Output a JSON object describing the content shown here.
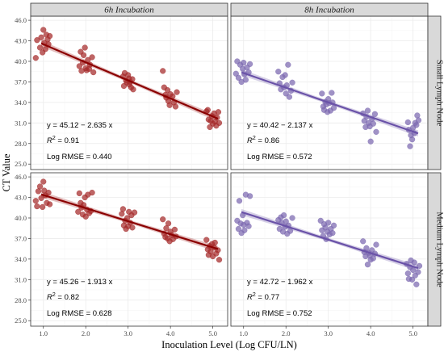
{
  "chart_data": {
    "type": "scatter",
    "xlabel": "Inoculation Level (Log CFU/LN)",
    "ylabel": "CT Value",
    "xlim": [
      0.7,
      5.35
    ],
    "ylim": [
      24.2,
      46.6
    ],
    "x_ticks": [
      1.0,
      2.0,
      3.0,
      4.0,
      5.0
    ],
    "x_tick_labels": [
      "1.0",
      "2.0",
      "3.0",
      "4.0",
      "5.0"
    ],
    "y_ticks": [
      25.0,
      28.0,
      31.0,
      34.0,
      37.0,
      40.0,
      43.0,
      46.0
    ],
    "y_tick_labels": [
      "25.0",
      "28.0",
      "31.0",
      "34.0",
      "37.0",
      "40.0",
      "43.0",
      "46.0"
    ],
    "grid": true,
    "columns": [
      "6h Incubation",
      "8h Incubation"
    ],
    "rows": [
      "Small Lymph Node",
      "Medium Lymph Node"
    ],
    "colors": {
      "6h Incubation": "#a52a2a",
      "8h Incubation": "#7b68b0",
      "line_6h": "#8b0000",
      "line_8h": "#6a52a8",
      "strip_bg": "#d9d9d9",
      "grid": "#ebebeb"
    },
    "panels": [
      {
        "column": "6h Incubation",
        "row": "Small Lymph Node",
        "fit": {
          "intercept": 45.12,
          "slope": -2.635
        },
        "equation": "y = 45.12 − 2.635 x",
        "r2_label": "R",
        "r2_value": "= 0.91",
        "rmse_label": "Log RMSE = 0.440",
        "points": [
          [
            0.82,
            40.5
          ],
          [
            0.85,
            43.1
          ],
          [
            0.92,
            42.0
          ],
          [
            0.95,
            43.5
          ],
          [
            0.98,
            41.3
          ],
          [
            1.0,
            44.6
          ],
          [
            1.02,
            42.7
          ],
          [
            1.05,
            41.8
          ],
          [
            1.07,
            43.9
          ],
          [
            1.1,
            43.2
          ],
          [
            1.12,
            42.5
          ],
          [
            1.15,
            43.7
          ],
          [
            1.85,
            39.3
          ],
          [
            1.88,
            41.4
          ],
          [
            1.9,
            38.6
          ],
          [
            1.93,
            39.8
          ],
          [
            1.95,
            40.9
          ],
          [
            1.98,
            42.0
          ],
          [
            2.0,
            39.0
          ],
          [
            2.02,
            38.7
          ],
          [
            2.05,
            40.2
          ],
          [
            2.08,
            38.9
          ],
          [
            2.1,
            39.5
          ],
          [
            2.15,
            40.6
          ],
          [
            2.18,
            38.4
          ],
          [
            2.88,
            37.8
          ],
          [
            2.9,
            36.4
          ],
          [
            2.92,
            38.3
          ],
          [
            2.95,
            37.2
          ],
          [
            2.97,
            36.9
          ],
          [
            3.0,
            38.0
          ],
          [
            3.02,
            37.5
          ],
          [
            3.03,
            36.6
          ],
          [
            3.05,
            37.0
          ],
          [
            3.07,
            36.2
          ],
          [
            3.1,
            37.4
          ],
          [
            3.12,
            35.9
          ],
          [
            3.82,
            38.6
          ],
          [
            3.85,
            36.2
          ],
          [
            3.88,
            35.1
          ],
          [
            3.9,
            34.7
          ],
          [
            3.93,
            35.8
          ],
          [
            3.95,
            34.2
          ],
          [
            3.98,
            33.6
          ],
          [
            4.0,
            35.2
          ],
          [
            4.05,
            34.9
          ],
          [
            4.08,
            34.0
          ],
          [
            4.12,
            33.4
          ],
          [
            4.15,
            35.5
          ],
          [
            4.85,
            32.7
          ],
          [
            4.88,
            32.9
          ],
          [
            4.9,
            31.5
          ],
          [
            4.93,
            30.4
          ],
          [
            4.95,
            31.3
          ],
          [
            4.98,
            32.0
          ],
          [
            5.0,
            30.9
          ],
          [
            5.03,
            32.4
          ],
          [
            5.05,
            31.2
          ],
          [
            5.08,
            30.6
          ],
          [
            5.1,
            31.8
          ],
          [
            5.13,
            32.6
          ],
          [
            5.15,
            31.0
          ]
        ]
      },
      {
        "column": "8h Incubation",
        "row": "Small Lymph Node",
        "fit": {
          "intercept": 40.42,
          "slope": -2.137
        },
        "equation": "y = 40.42 − 2.137 x",
        "r2_label": "R",
        "r2_value": "= 0.86",
        "rmse_label": "Log RMSE = 0.572",
        "points": [
          [
            0.82,
            38.2
          ],
          [
            0.85,
            40.0
          ],
          [
            0.88,
            37.6
          ],
          [
            0.92,
            39.5
          ],
          [
            0.95,
            37.0
          ],
          [
            0.98,
            38.9
          ],
          [
            1.0,
            39.8
          ],
          [
            1.02,
            38.1
          ],
          [
            1.05,
            37.3
          ],
          [
            1.08,
            39.1
          ],
          [
            1.12,
            38.4
          ],
          [
            1.15,
            39.6
          ],
          [
            1.82,
            38.5
          ],
          [
            1.85,
            36.8
          ],
          [
            1.88,
            35.9
          ],
          [
            1.92,
            37.7
          ],
          [
            1.95,
            36.2
          ],
          [
            1.98,
            38.0
          ],
          [
            2.0,
            35.3
          ],
          [
            2.02,
            36.5
          ],
          [
            2.05,
            39.5
          ],
          [
            2.08,
            34.8
          ],
          [
            2.12,
            35.7
          ],
          [
            2.15,
            36.9
          ],
          [
            2.85,
            35.3
          ],
          [
            2.88,
            33.4
          ],
          [
            2.9,
            32.9
          ],
          [
            2.93,
            34.1
          ],
          [
            2.95,
            33.7
          ],
          [
            2.98,
            32.6
          ],
          [
            3.0,
            34.5
          ],
          [
            3.02,
            33.9
          ],
          [
            3.05,
            32.8
          ],
          [
            3.08,
            35.4
          ],
          [
            3.1,
            34.0
          ],
          [
            3.13,
            33.2
          ],
          [
            3.82,
            32.4
          ],
          [
            3.85,
            31.3
          ],
          [
            3.88,
            30.4
          ],
          [
            3.9,
            31.9
          ],
          [
            3.93,
            32.8
          ],
          [
            3.95,
            31.0
          ],
          [
            3.98,
            30.5
          ],
          [
            4.0,
            28.3
          ],
          [
            4.03,
            31.6
          ],
          [
            4.06,
            30.9
          ],
          [
            4.1,
            32.3
          ],
          [
            4.13,
            29.7
          ],
          [
            4.88,
            31.1
          ],
          [
            4.9,
            30.0
          ],
          [
            4.93,
            27.6
          ],
          [
            4.95,
            29.2
          ],
          [
            4.98,
            28.6
          ],
          [
            5.0,
            30.3
          ],
          [
            5.03,
            29.5
          ],
          [
            5.05,
            31.0
          ],
          [
            5.08,
            30.7
          ],
          [
            5.1,
            32.1
          ],
          [
            5.13,
            31.4
          ]
        ]
      },
      {
        "column": "6h Incubation",
        "row": "Medium Lymph Node",
        "fit": {
          "intercept": 45.26,
          "slope": -1.913
        },
        "equation": "y = 45.26 − 1.913 x",
        "r2_label": "R",
        "r2_value": "= 0.82",
        "rmse_label": "Log RMSE = 0.628",
        "points": [
          [
            0.82,
            42.5
          ],
          [
            0.85,
            41.7
          ],
          [
            0.88,
            43.9
          ],
          [
            0.92,
            44.6
          ],
          [
            0.95,
            42.9
          ],
          [
            0.98,
            41.6
          ],
          [
            1.0,
            45.3
          ],
          [
            1.02,
            44.0
          ],
          [
            1.05,
            43.3
          ],
          [
            1.08,
            42.2
          ],
          [
            1.12,
            43.7
          ],
          [
            1.15,
            42.0
          ],
          [
            1.82,
            40.9
          ],
          [
            1.85,
            43.6
          ],
          [
            1.88,
            42.2
          ],
          [
            1.9,
            41.5
          ],
          [
            1.93,
            40.5
          ],
          [
            1.95,
            41.9
          ],
          [
            1.98,
            43.0
          ],
          [
            2.0,
            40.2
          ],
          [
            2.03,
            41.2
          ],
          [
            2.05,
            43.4
          ],
          [
            2.08,
            40.7
          ],
          [
            2.12,
            41.0
          ],
          [
            2.15,
            43.7
          ],
          [
            2.85,
            40.6
          ],
          [
            2.88,
            41.3
          ],
          [
            2.9,
            38.9
          ],
          [
            2.93,
            39.6
          ],
          [
            2.95,
            38.4
          ],
          [
            2.98,
            40.0
          ],
          [
            3.0,
            38.8
          ],
          [
            3.02,
            40.9
          ],
          [
            3.05,
            39.3
          ],
          [
            3.08,
            40.4
          ],
          [
            3.1,
            38.6
          ],
          [
            3.15,
            40.8
          ],
          [
            3.82,
            39.8
          ],
          [
            3.85,
            37.7
          ],
          [
            3.88,
            37.2
          ],
          [
            3.9,
            38.5
          ],
          [
            3.93,
            37.0
          ],
          [
            3.95,
            39.2
          ],
          [
            3.98,
            36.6
          ],
          [
            4.0,
            38.0
          ],
          [
            4.03,
            37.5
          ],
          [
            4.06,
            36.9
          ],
          [
            4.1,
            38.3
          ],
          [
            4.13,
            37.3
          ],
          [
            4.85,
            36.8
          ],
          [
            4.88,
            35.4
          ],
          [
            4.9,
            34.6
          ],
          [
            4.93,
            35.9
          ],
          [
            4.95,
            35.1
          ],
          [
            4.98,
            36.2
          ],
          [
            5.0,
            34.4
          ],
          [
            5.03,
            35.7
          ],
          [
            5.05,
            36.4
          ],
          [
            5.08,
            34.8
          ],
          [
            5.12,
            35.3
          ],
          [
            5.15,
            33.9
          ]
        ]
      },
      {
        "column": "8h Incubation",
        "row": "Medium Lymph Node",
        "fit": {
          "intercept": 42.72,
          "slope": -1.962
        },
        "equation": "y = 42.72 − 1.962 x",
        "r2_label": "R",
        "r2_value": "= 0.77",
        "rmse_label": "Log RMSE = 0.752",
        "points": [
          [
            0.85,
            39.6
          ],
          [
            0.88,
            38.4
          ],
          [
            0.9,
            42.5
          ],
          [
            0.93,
            39.2
          ],
          [
            0.95,
            37.8
          ],
          [
            0.98,
            40.4
          ],
          [
            1.0,
            39.0
          ],
          [
            1.02,
            38.2
          ],
          [
            1.05,
            43.4
          ],
          [
            1.08,
            39.3
          ],
          [
            1.12,
            38.8
          ],
          [
            1.15,
            43.2
          ],
          [
            1.82,
            39.7
          ],
          [
            1.85,
            38.4
          ],
          [
            1.88,
            40.1
          ],
          [
            1.9,
            39.3
          ],
          [
            1.93,
            38.0
          ],
          [
            1.95,
            40.4
          ],
          [
            1.98,
            38.7
          ],
          [
            2.0,
            39.5
          ],
          [
            2.03,
            37.7
          ],
          [
            2.06,
            38.9
          ],
          [
            2.1,
            38.1
          ],
          [
            2.15,
            40.0
          ],
          [
            2.82,
            39.6
          ],
          [
            2.85,
            38.2
          ],
          [
            2.88,
            37.4
          ],
          [
            2.9,
            39.1
          ],
          [
            2.93,
            38.6
          ],
          [
            2.95,
            36.9
          ],
          [
            2.98,
            38.0
          ],
          [
            3.0,
            39.3
          ],
          [
            3.03,
            37.6
          ],
          [
            3.06,
            38.4
          ],
          [
            3.1,
            37.8
          ],
          [
            3.13,
            38.9
          ],
          [
            3.82,
            36.6
          ],
          [
            3.85,
            35.0
          ],
          [
            3.88,
            34.4
          ],
          [
            3.9,
            35.6
          ],
          [
            3.93,
            33.2
          ],
          [
            3.95,
            34.9
          ],
          [
            3.98,
            34.5
          ],
          [
            4.0,
            33.9
          ],
          [
            4.03,
            35.3
          ],
          [
            4.06,
            34.1
          ],
          [
            4.1,
            34.8
          ],
          [
            4.13,
            36.1
          ],
          [
            4.85,
            33.3
          ],
          [
            4.88,
            31.9
          ],
          [
            4.9,
            31.1
          ],
          [
            4.93,
            32.8
          ],
          [
            4.95,
            33.8
          ],
          [
            4.98,
            31.0
          ],
          [
            5.0,
            32.4
          ],
          [
            5.03,
            33.5
          ],
          [
            5.05,
            31.6
          ],
          [
            5.08,
            30.3
          ],
          [
            5.12,
            32.1
          ],
          [
            5.15,
            33.0
          ]
        ]
      }
    ]
  }
}
